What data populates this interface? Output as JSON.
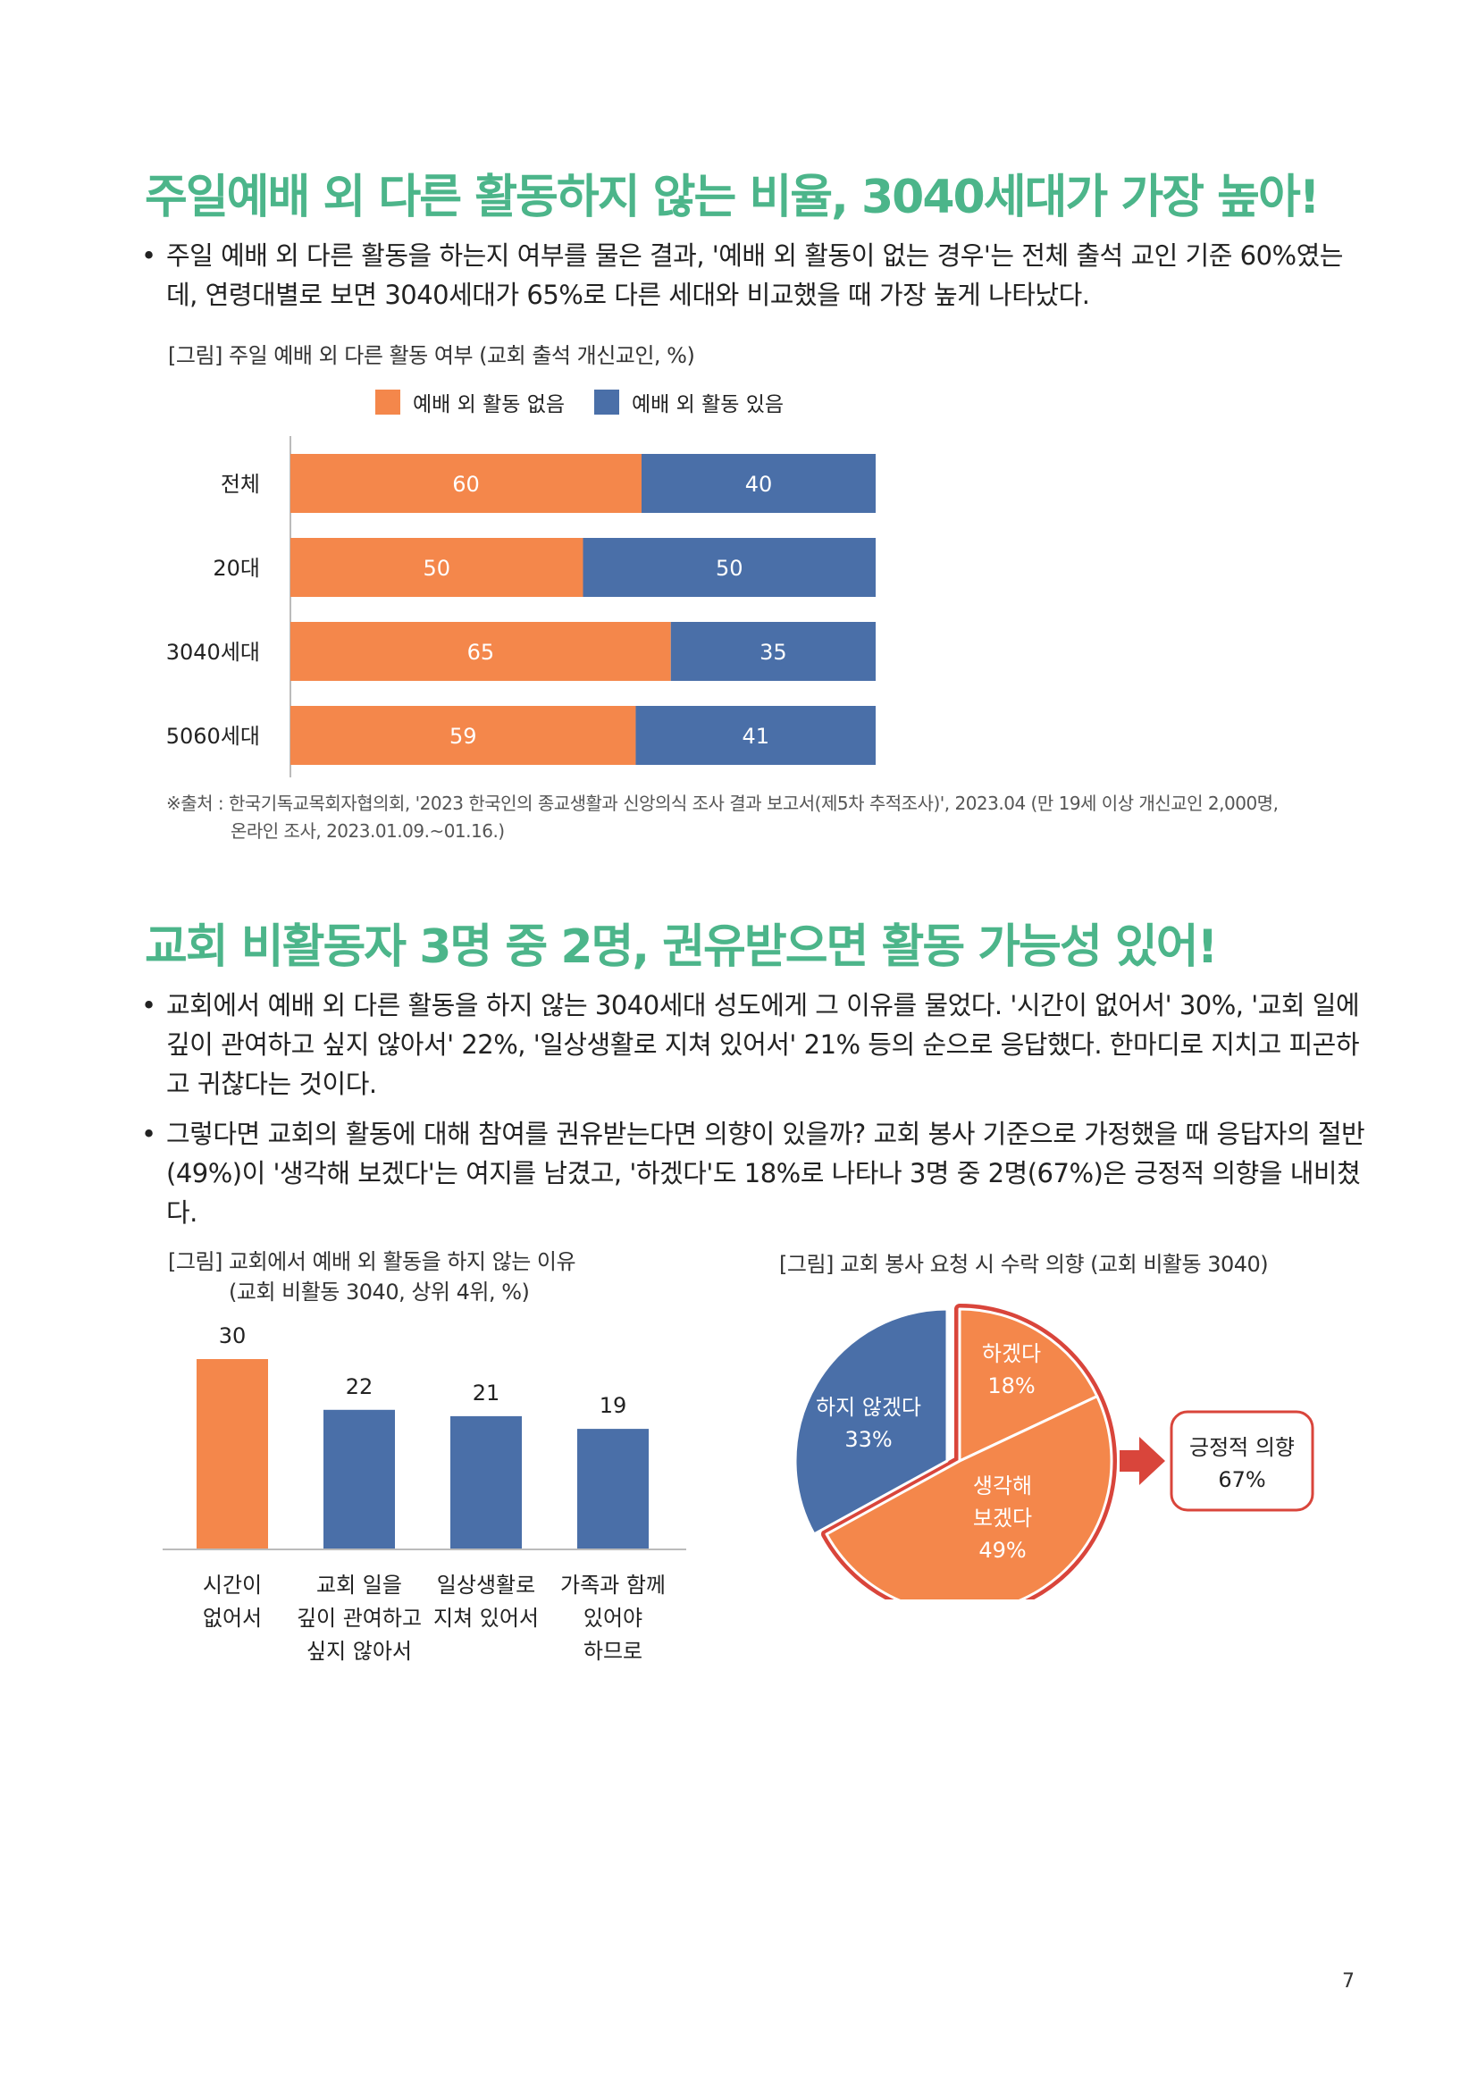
{
  "section1": {
    "title": "주일예배 외 다른 활동하지 않는 비율, 3040세대가 가장 높아!",
    "bullet": "•",
    "paragraph_line1": "주일 예배 외 다른 활동을 하는지 여부를 물은 결과, '예배 외 활동이 없는 경우'는 전체 출석 교인 기준 60%였는",
    "paragraph_line2": "데, 연령대별로 보면 3040세대가 65%로 다른 세대와 비교했을 때 가장 높게 나타났다.",
    "figure_caption": "[그림] 주일 예배 외 다른 활동 여부 (교회 출석 개신교인, %)",
    "source_line1": "※출처 : 한국기독교목회자협의회, '2023 한국인의 종교생활과 신앙의식 조사 결과 보고서(제5차 추적조사)', 2023.04 (만 19세 이상 개신교인 2,000명,",
    "source_line2": "온라인 조사, 2023.01.09.~01.16.)"
  },
  "section2": {
    "title": "교회 비활동자 3명 중 2명, 권유받으면 활동 가능성 있어!",
    "bullet": "•",
    "p1_line1": "교회에서 예배 외 다른 활동을 하지 않는 3040세대 성도에게 그 이유를 물었다. '시간이 없어서' 30%, '교회 일에",
    "p1_line2": "깊이 관여하고 싶지 않아서' 22%, '일상생활로 지쳐 있어서' 21% 등의 순으로 응답했다. 한마디로 지치고 피곤하",
    "p1_line3": "고 귀찮다는 것이다.",
    "p2_line1": "그렇다면 교회의 활동에 대해 참여를 권유받는다면 의향이 있을까? 교회 봉사 기준으로 가정했을 때 응답자의 절반",
    "p2_line2": "(49%)이 '생각해 보겠다'는 여지를 남겼고, '하겠다'도 18%로 나타나 3명 중 2명(67%)은 긍정적 의향을 내비쳤",
    "p2_line3": "다.",
    "bar_caption_line1": "[그림] 교회에서 예배 외 활동을 하지 않는 이유",
    "bar_caption_line2": "(교회 비활동 3040, 상위 4위, %)",
    "pie_caption": "[그림] 교회 봉사 요청 시 수락 의향 (교회 비활동 3040)",
    "callout_line1": "긍정적 의향",
    "callout_line2": "67%"
  },
  "page_number": "7",
  "colors": {
    "orange": "#f4874b",
    "blue": "#4a6fa8",
    "green_title": "#4cb58a",
    "red_outline": "#d9453b"
  },
  "chart_data": [
    {
      "type": "bar",
      "orientation": "horizontal-stacked",
      "title": "[그림] 주일 예배 외 다른 활동 여부 (교회 출석 개신교인, %)",
      "categories": [
        "전체",
        "20대",
        "3040세대",
        "5060세대"
      ],
      "series": [
        {
          "name": "예배 외 활동 없음",
          "values": [
            60,
            50,
            65,
            59
          ]
        },
        {
          "name": "예배 외 활동 있음",
          "values": [
            40,
            50,
            35,
            41
          ]
        }
      ],
      "xlim": [
        0,
        100
      ],
      "legend": "top"
    },
    {
      "type": "bar",
      "title": "[그림] 교회에서 예배 외 활동을 하지 않는 이유",
      "categories": [
        [
          "시간이",
          "없어서"
        ],
        [
          "교회 일을",
          "깊이 관여하고",
          "싶지 않아서"
        ],
        [
          "일상생활로",
          "지쳐 있어서"
        ],
        [
          "가족과 함께",
          "있어야",
          "하므로"
        ]
      ],
      "values": [
        30,
        22,
        21,
        19
      ],
      "ylim": [
        0,
        32
      ]
    },
    {
      "type": "pie",
      "title": "[그림] 교회 봉사 요청 시 수락 의향 (교회 비활동 3040)",
      "slices": [
        {
          "label": "하겠다",
          "pct": "18%",
          "value": 18
        },
        {
          "label": "생각해 보겠다",
          "label_lines": [
            "생각해",
            "보겠다"
          ],
          "pct": "49%",
          "value": 49
        },
        {
          "label": "하지 않겠다",
          "pct": "33%",
          "value": 33
        }
      ]
    }
  ]
}
